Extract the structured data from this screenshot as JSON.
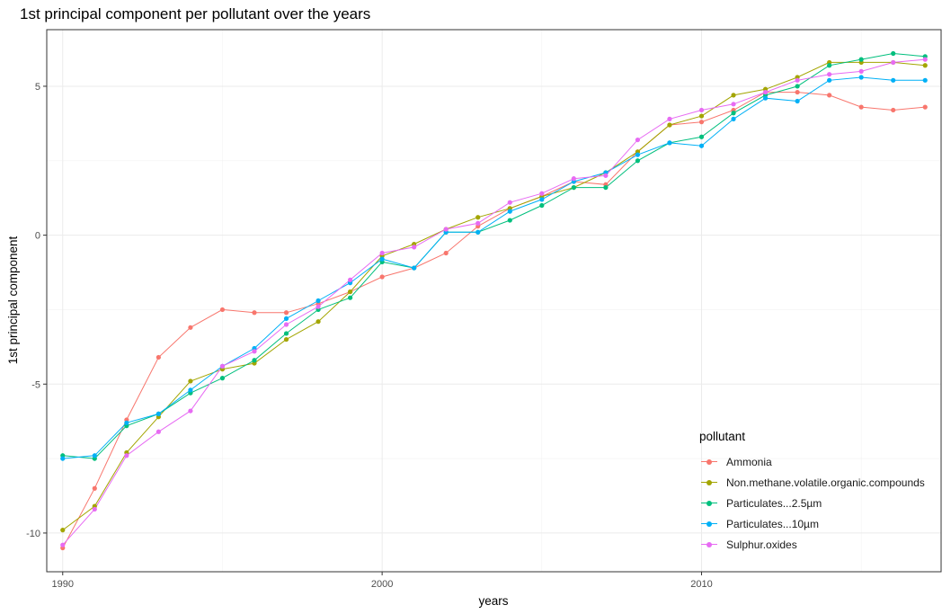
{
  "chart_data": {
    "type": "line",
    "title": "1st principal component per pollutant over the years",
    "xlabel": "years",
    "ylabel": "1st principal component",
    "xlim": [
      1989.5,
      2017.5
    ],
    "ylim": [
      -11.3,
      6.9
    ],
    "x_ticks": [
      1990,
      2000,
      2010
    ],
    "y_ticks": [
      -10,
      -5,
      0,
      5
    ],
    "grid": true,
    "legend_title": "pollutant",
    "legend_position": "bottom-right inside",
    "x": [
      1990,
      1991,
      1992,
      1993,
      1994,
      1995,
      1996,
      1997,
      1998,
      1999,
      2000,
      2001,
      2002,
      2003,
      2004,
      2005,
      2006,
      2007,
      2008,
      2009,
      2010,
      2011,
      2012,
      2013,
      2014,
      2015,
      2016,
      2017
    ],
    "series": [
      {
        "name": "Ammonia",
        "color": "#F8766D",
        "values": [
          -10.5,
          -8.5,
          -6.2,
          -4.1,
          -3.1,
          -2.5,
          -2.6,
          -2.6,
          -2.3,
          -1.9,
          -1.4,
          -1.1,
          -0.6,
          0.3,
          0.9,
          1.3,
          1.8,
          1.7,
          2.8,
          3.7,
          3.8,
          4.2,
          4.8,
          4.8,
          4.7,
          4.3,
          4.2,
          4.3
        ]
      },
      {
        "name": "Non.methane.volatile.organic.compounds",
        "color": "#A3A500",
        "values": [
          -9.9,
          -9.1,
          -7.3,
          -6.1,
          -4.9,
          -4.5,
          -4.3,
          -3.5,
          -2.9,
          -1.9,
          -0.7,
          -0.3,
          0.2,
          0.6,
          0.9,
          1.3,
          1.6,
          2.1,
          2.8,
          3.7,
          4.0,
          4.7,
          4.9,
          5.3,
          5.8,
          5.8,
          5.8,
          5.7
        ]
      },
      {
        "name": "Particulates...2.5µm",
        "color": "#00BF7D",
        "values": [
          -7.4,
          -7.5,
          -6.4,
          -6.0,
          -5.3,
          -4.8,
          -4.2,
          -3.3,
          -2.5,
          -2.1,
          -0.9,
          -1.1,
          0.1,
          0.1,
          0.5,
          1.0,
          1.6,
          1.6,
          2.5,
          3.1,
          3.3,
          4.1,
          4.7,
          5.0,
          5.7,
          5.9,
          6.1,
          6.0
        ]
      },
      {
        "name": "Particulates...10µm",
        "color": "#00B0F6",
        "values": [
          -7.5,
          -7.4,
          -6.3,
          -6.0,
          -5.2,
          -4.4,
          -3.8,
          -2.8,
          -2.2,
          -1.6,
          -0.8,
          -1.1,
          0.1,
          0.1,
          0.8,
          1.2,
          1.8,
          2.1,
          2.7,
          3.1,
          3.0,
          3.9,
          4.6,
          4.5,
          5.2,
          5.3,
          5.2,
          5.2
        ]
      },
      {
        "name": "Sulphur.oxides",
        "color": "#E76BF3",
        "values": [
          -10.4,
          -9.2,
          -7.4,
          -6.6,
          -5.9,
          -4.4,
          -3.9,
          -3.0,
          -2.4,
          -1.5,
          -0.6,
          -0.4,
          0.2,
          0.4,
          1.1,
          1.4,
          1.9,
          2.0,
          3.2,
          3.9,
          4.2,
          4.4,
          4.8,
          5.2,
          5.4,
          5.5,
          5.8,
          5.9
        ]
      }
    ]
  }
}
